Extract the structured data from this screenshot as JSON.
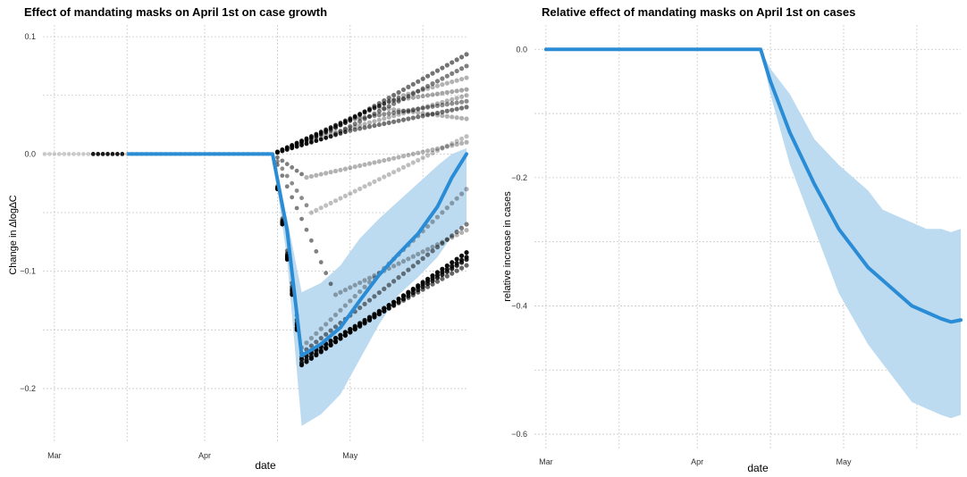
{
  "chart_data": [
    {
      "type": "line",
      "title": "Effect of mandating masks on April 1st on case growth",
      "xlabel": "date",
      "ylabel": "Change in ∆log∆C",
      "x_ticks": [
        "Mar",
        "Apr",
        "May"
      ],
      "x_range": [
        "2020-02-28",
        "2020-05-25"
      ],
      "y_ticks": [
        "0.1",
        "0.0",
        "−0.1",
        "−0.2"
      ],
      "y_tick_values": [
        0.1,
        0.0,
        -0.1,
        -0.2
      ],
      "ylim": [
        -0.245,
        0.11
      ],
      "grid": true,
      "colors": {
        "line": "#2b8cd6",
        "band": "#bcdaf0",
        "dots": "#000000"
      },
      "series": [
        {
          "x": [
            "2020-04-15",
            "2020-04-18",
            "2020-04-21",
            "2020-04-25",
            "2020-04-29",
            "2020-05-03",
            "2020-05-07",
            "2020-05-11",
            "2020-05-15",
            "2020-05-19",
            "2020-05-22",
            "2020-05-25"
          ],
          "y": [
            0.0,
            -0.065,
            -0.172,
            -0.162,
            -0.148,
            -0.125,
            -0.103,
            -0.085,
            -0.068,
            -0.045,
            -0.02,
            0.0
          ]
        }
      ],
      "band_x": [
        "2020-04-15",
        "2020-04-18",
        "2020-04-21",
        "2020-04-25",
        "2020-04-29",
        "2020-05-03",
        "2020-05-07",
        "2020-05-11",
        "2020-05-15",
        "2020-05-19",
        "2020-05-22",
        "2020-05-25"
      ],
      "band_upper": [
        0.0,
        -0.055,
        -0.118,
        -0.11,
        -0.095,
        -0.072,
        -0.055,
        -0.04,
        -0.025,
        -0.01,
        0.0,
        0.005
      ],
      "band_lower": [
        0.0,
        -0.09,
        -0.232,
        -0.222,
        -0.205,
        -0.175,
        -0.145,
        -0.12,
        -0.105,
        -0.088,
        -0.07,
        -0.058
      ],
      "dot_traces": [
        {
          "x": [
            "2020-04-15",
            "2020-04-21",
            "2020-05-25"
          ],
          "y": [
            0.0,
            -0.18,
            -0.084
          ],
          "shade": 0.95
        },
        {
          "x": [
            "2020-04-15",
            "2020-04-21",
            "2020-05-25"
          ],
          "y": [
            0.0,
            -0.178,
            -0.09
          ],
          "shade": 0.85
        },
        {
          "x": [
            "2020-04-15",
            "2020-04-21",
            "2020-05-25"
          ],
          "y": [
            0.0,
            -0.175,
            -0.088
          ],
          "shade": 0.9
        },
        {
          "x": [
            "2020-04-15",
            "2020-04-21",
            "2020-05-25"
          ],
          "y": [
            0.0,
            -0.173,
            -0.095
          ],
          "shade": 0.6
        },
        {
          "x": [
            "2020-04-15",
            "2020-04-21",
            "2020-05-25"
          ],
          "y": [
            0.0,
            -0.17,
            -0.06
          ],
          "shade": 0.5
        },
        {
          "x": [
            "2020-04-15",
            "2020-04-21",
            "2020-05-25"
          ],
          "y": [
            0.0,
            -0.165,
            -0.03
          ],
          "shade": 0.3
        },
        {
          "x": [
            "2020-04-15",
            "2020-04-23",
            "2020-05-25"
          ],
          "y": [
            0.0,
            -0.05,
            0.015
          ],
          "shade": 0.25
        },
        {
          "x": [
            "2020-04-15",
            "2020-04-25",
            "2020-05-25"
          ],
          "y": [
            0.0,
            0.015,
            0.05
          ],
          "shade": 0.3
        },
        {
          "x": [
            "2020-04-15",
            "2020-04-27",
            "2020-05-25"
          ],
          "y": [
            0.0,
            0.02,
            0.085
          ],
          "shade": 0.55
        },
        {
          "x": [
            "2020-04-15",
            "2020-04-27",
            "2020-05-25"
          ],
          "y": [
            0.0,
            0.015,
            0.075
          ],
          "shade": 0.5
        },
        {
          "x": [
            "2020-04-15",
            "2020-05-02",
            "2020-05-25"
          ],
          "y": [
            0.0,
            0.03,
            0.045
          ],
          "shade": 0.45
        },
        {
          "x": [
            "2020-04-15",
            "2020-05-01",
            "2020-05-25"
          ],
          "y": [
            0.0,
            0.02,
            0.04
          ],
          "shade": 0.55
        },
        {
          "x": [
            "2020-04-15",
            "2020-05-06",
            "2020-05-25"
          ],
          "y": [
            0.0,
            0.04,
            0.03
          ],
          "shade": 0.3
        },
        {
          "x": [
            "2020-04-15",
            "2020-05-09",
            "2020-05-25"
          ],
          "y": [
            0.0,
            0.045,
            0.055
          ],
          "shade": 0.35
        },
        {
          "x": [
            "2020-04-15",
            "2020-05-12",
            "2020-05-25"
          ],
          "y": [
            0.0,
            0.05,
            0.065
          ],
          "shade": 0.3
        },
        {
          "x": [
            "2020-04-15",
            "2020-04-28",
            "2020-05-25"
          ],
          "y": [
            0.0,
            -0.12,
            -0.065
          ],
          "shade": 0.3
        },
        {
          "x": [
            "2020-04-15",
            "2020-04-22",
            "2020-05-25"
          ],
          "y": [
            0.0,
            -0.02,
            0.01
          ],
          "shade": 0.3
        }
      ],
      "pre_dots": {
        "start": "2020-02-28",
        "end": "2020-04-14",
        "y": 0.0
      }
    },
    {
      "type": "line",
      "title": "Relative effect of mandating masks on April 1st on cases",
      "xlabel": "date",
      "ylabel": "relative increase in cases",
      "x_ticks": [
        "Mar",
        "Apr",
        "May"
      ],
      "x_range": [
        "2020-02-28",
        "2020-05-25"
      ],
      "y_ticks": [
        "0.0",
        "−0.2",
        "−0.4",
        "−0.6"
      ],
      "y_tick_values": [
        0.0,
        -0.2,
        -0.4,
        -0.6
      ],
      "ylim": [
        -0.625,
        0.038
      ],
      "grid": true,
      "colors": {
        "line": "#2b8cd6",
        "band": "#bcdaf0"
      },
      "series": [
        {
          "x": [
            "2020-03-01",
            "2020-04-14",
            "2020-04-16",
            "2020-04-20",
            "2020-04-25",
            "2020-04-30",
            "2020-05-03",
            "2020-05-06",
            "2020-05-09",
            "2020-05-12",
            "2020-05-15",
            "2020-05-18",
            "2020-05-21",
            "2020-05-23",
            "2020-05-25"
          ],
          "y": [
            0.0,
            0.0,
            -0.05,
            -0.13,
            -0.21,
            -0.28,
            -0.31,
            -0.34,
            -0.36,
            -0.38,
            -0.4,
            -0.41,
            -0.42,
            -0.425,
            -0.422
          ]
        }
      ],
      "band_x": [
        "2020-03-01",
        "2020-04-14",
        "2020-04-16",
        "2020-04-20",
        "2020-04-25",
        "2020-04-30",
        "2020-05-03",
        "2020-05-06",
        "2020-05-09",
        "2020-05-12",
        "2020-05-15",
        "2020-05-18",
        "2020-05-21",
        "2020-05-23",
        "2020-05-25"
      ],
      "band_upper": [
        0.0,
        0.0,
        -0.03,
        -0.07,
        -0.14,
        -0.18,
        -0.2,
        -0.22,
        -0.25,
        -0.26,
        -0.27,
        -0.28,
        -0.28,
        -0.285,
        -0.28
      ],
      "band_lower": [
        0.0,
        0.0,
        -0.07,
        -0.18,
        -0.28,
        -0.38,
        -0.42,
        -0.46,
        -0.49,
        -0.52,
        -0.55,
        -0.56,
        -0.57,
        -0.575,
        -0.57
      ]
    }
  ]
}
